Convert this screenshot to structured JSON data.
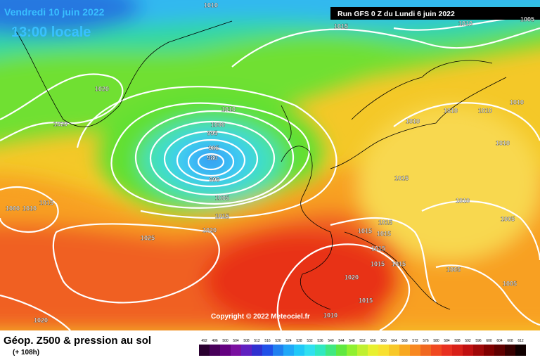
{
  "header": {
    "date": "Vendredi 10 juin 2022",
    "time": "13:00 locale",
    "run": "Run GFS 0 Z du Lundi 6 juin 2022"
  },
  "isobar_labels": [
    "1010",
    "1015",
    "1010",
    "1005",
    "1020",
    "1020",
    "1010",
    "1000",
    "995",
    "985",
    "980",
    "990",
    "1005",
    "1015",
    "1020",
    "1025",
    "1015",
    "1010",
    "1000",
    "1010",
    "1010",
    "1010",
    "1010",
    "1010",
    "1015",
    "1010",
    "1005",
    "1015",
    "1015",
    "1015",
    "1015",
    "1015",
    "1015",
    "1020",
    "1005",
    "1005",
    "1015",
    "1010",
    "1020"
  ],
  "copyright": "Copyright © 2022 Meteociel.fr",
  "footer": {
    "title": "Géop. Z500 & pression au sol",
    "lead": "(+ 108h)"
  },
  "scale": [
    492,
    496,
    500,
    504,
    508,
    512,
    516,
    520,
    524,
    528,
    532,
    536,
    540,
    544,
    548,
    552,
    556,
    560,
    564,
    568,
    572,
    576,
    580,
    584,
    588,
    592,
    596,
    600,
    604,
    608,
    612
  ]
}
